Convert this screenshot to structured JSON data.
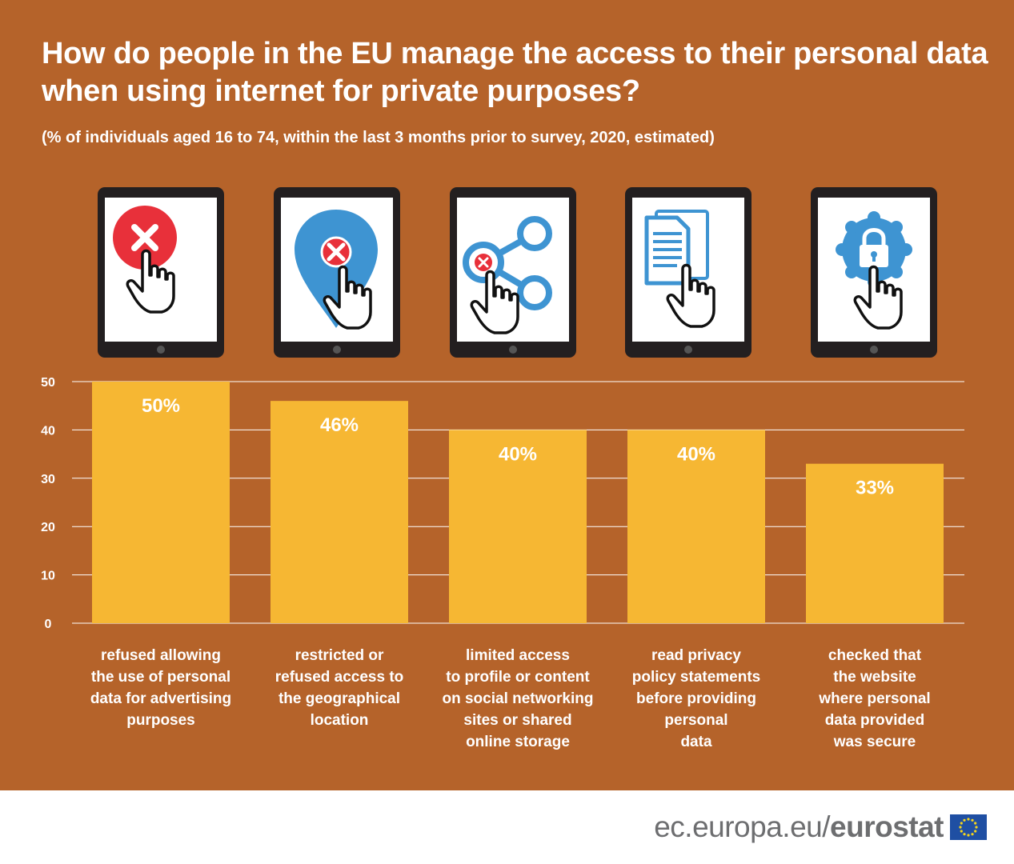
{
  "title": "How do people in the EU manage the access to their personal data when using internet for private purposes?",
  "subtitle": "(% of individuals aged 16 to 74, within the last 3 months prior to survey, 2020, estimated)",
  "icons": [
    "cancel-icon",
    "location-pin-cancel-icon",
    "share-icon",
    "document-icon",
    "lock-badge-icon"
  ],
  "footer": {
    "url": "ec.europa.eu/",
    "brand": "eurostat"
  },
  "colors": {
    "background": "#b5632a",
    "bar": "#f6b733",
    "text": "#ffffff",
    "gridline": "#ffffff",
    "footer_text": "#6d6e70",
    "icon_red": "#e8303a",
    "icon_blue": "#3e94d2"
  },
  "chart_data": {
    "type": "bar",
    "title": "How do people in the EU manage the access to their personal data when using internet for private purposes?",
    "subtitle": "(% of individuals aged 16 to 74, within the last 3 months prior to survey, 2020, estimated)",
    "categories": [
      "refused allowing\nthe use of personal\ndata for advertising\npurposes",
      "restricted or\nrefused access to\nthe geographical\nlocation",
      "limited access\nto profile or content\non social networking\nsites or shared\nonline storage",
      "read privacy\npolicy statements\nbefore providing\npersonal\ndata",
      "checked that\nthe website\nwhere personal\ndata provided\nwas secure"
    ],
    "values": [
      50,
      46,
      40,
      40,
      33
    ],
    "value_labels": [
      "50%",
      "46%",
      "40%",
      "40%",
      "33%"
    ],
    "yticks": [
      0,
      10,
      20,
      30,
      40,
      50
    ],
    "ylim": [
      0,
      50
    ],
    "xlabel": "",
    "ylabel": "",
    "grid": true,
    "legend": "none"
  }
}
